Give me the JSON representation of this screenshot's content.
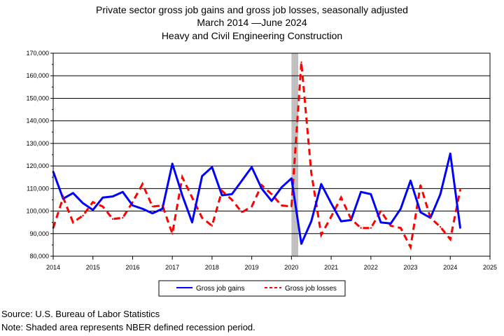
{
  "title_lines": [
    "Private sector gross job gains and gross job losses, seasonally adjusted",
    "March 2014  —June 2024",
    "Heavy and Civil Engineering Construction"
  ],
  "footer": {
    "source": "Source: U.S. Bureau of Labor Statistics",
    "note": "Note: Shaded area represents NBER defined recession period."
  },
  "colors": {
    "gains": "#0000ff",
    "losses": "#ff0000",
    "recession": "#c0c0c0",
    "grid": "#000000"
  },
  "chart_data": {
    "type": "line",
    "title": "Private sector gross job gains and gross job losses, seasonally adjusted",
    "subtitle": "March 2014 —June 2024 — Heavy and Civil Engineering Construction",
    "xlim": [
      2014,
      2025
    ],
    "ylim": [
      80000,
      170000
    ],
    "x_ticks": [
      2014,
      2015,
      2016,
      2017,
      2018,
      2019,
      2020,
      2021,
      2022,
      2023,
      2024,
      2025
    ],
    "y_ticks": [
      80000,
      90000,
      100000,
      110000,
      120000,
      130000,
      140000,
      150000,
      160000,
      170000
    ],
    "y_tick_labels": [
      "80,000",
      "90,000",
      "100,000",
      "110,000",
      "120,000",
      "130,000",
      "140,000",
      "150,000",
      "160,000",
      "170,000"
    ],
    "grid": "horizontal",
    "legend_position": "bottom",
    "recession_band": [
      2020.0,
      2020.17
    ],
    "x": [
      2014.0,
      2014.25,
      2014.5,
      2014.75,
      2015.0,
      2015.25,
      2015.5,
      2015.75,
      2016.0,
      2016.25,
      2016.5,
      2016.75,
      2017.0,
      2017.25,
      2017.5,
      2017.75,
      2018.0,
      2018.25,
      2018.5,
      2018.75,
      2019.0,
      2019.25,
      2019.5,
      2019.75,
      2020.0,
      2020.25,
      2020.5,
      2020.75,
      2021.0,
      2021.25,
      2021.5,
      2021.75,
      2022.0,
      2022.25,
      2022.5,
      2022.75,
      2023.0,
      2023.25,
      2023.5,
      2023.75,
      2024.0,
      2024.25
    ],
    "series": [
      {
        "name": "Gross job gains",
        "style": "solid",
        "values": [
          117500,
          105500,
          108000,
          103500,
          100500,
          106000,
          106500,
          108500,
          102500,
          101000,
          99000,
          101000,
          121000,
          107000,
          95000,
          115500,
          119500,
          107000,
          107500,
          113500,
          119500,
          110000,
          104500,
          110500,
          114500,
          85500,
          95500,
          112000,
          103500,
          95500,
          96000,
          108500,
          107500,
          95000,
          94500,
          101000,
          113500,
          99500,
          97000,
          107500,
          125500,
          92500
        ]
      },
      {
        "name": "Gross job losses",
        "style": "dashed",
        "values": [
          92500,
          106000,
          95000,
          98000,
          104000,
          102000,
          96500,
          97000,
          104000,
          112000,
          102000,
          102500,
          90000,
          115000,
          106000,
          97000,
          93500,
          109000,
          105000,
          99500,
          102000,
          111500,
          107500,
          102500,
          102000,
          166000,
          117000,
          89500,
          97500,
          106000,
          96500,
          92500,
          92500,
          100000,
          93500,
          92500,
          84000,
          111500,
          97000,
          93000,
          87500,
          109500
        ]
      }
    ]
  }
}
